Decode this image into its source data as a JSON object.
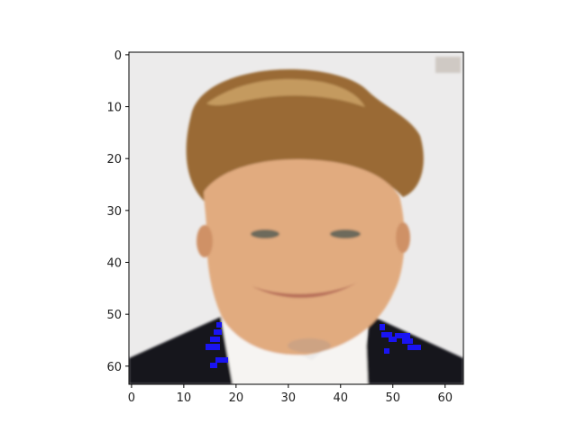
{
  "image_axes": {
    "x_range": [
      -0.5,
      63.5
    ],
    "y_range": [
      -0.5,
      63.5
    ],
    "y_inverted": true,
    "x_ticks": [
      "0",
      "10",
      "20",
      "30",
      "40",
      "50",
      "60"
    ],
    "y_ticks": [
      "0",
      "10",
      "20",
      "30",
      "40",
      "50",
      "60"
    ],
    "image_size": [
      64,
      64
    ],
    "colors": {
      "background": "#ecebeb",
      "hair": "#9a6a34",
      "hair_highlight": "#c49a5e",
      "skin": "#e1ab7f",
      "skin_shadow": "#cf9166",
      "eyes": "#6d6a5c",
      "mouth": "#b8705a",
      "suit": "#17171b",
      "shirt": "#f6f4f2",
      "marker": "#1a14f2"
    }
  }
}
